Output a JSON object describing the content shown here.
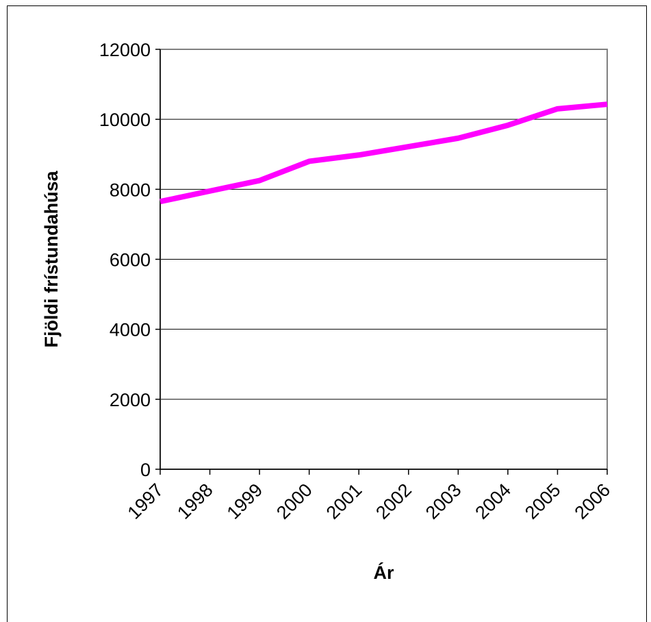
{
  "chart_data": {
    "type": "line",
    "title": "",
    "xlabel": "Ár",
    "ylabel": "Fjöldi frístundahúsa",
    "categories": [
      "1997",
      "1998",
      "1999",
      "2000",
      "2001",
      "2002",
      "2003",
      "2004",
      "2005",
      "2006"
    ],
    "series": [
      {
        "values": [
          7650,
          7950,
          8250,
          8800,
          8980,
          9220,
          9460,
          9830,
          10300,
          10430
        ],
        "color": "#ff00ff"
      }
    ],
    "ylim": [
      0,
      12000
    ],
    "yticks": [
      0,
      2000,
      4000,
      6000,
      8000,
      10000,
      12000
    ],
    "grid": "horizontal",
    "legend": "none"
  }
}
